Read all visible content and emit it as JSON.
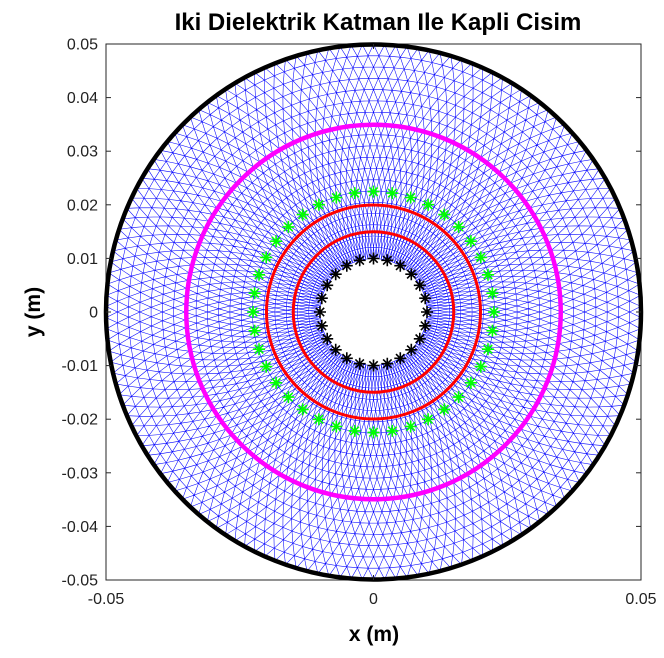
{
  "chart_data": {
    "type": "scatter",
    "title": "Iki Dielektrik Katman Ile Kapli Cisim",
    "xlabel": "x (m)",
    "ylabel": "y (m)",
    "xlim": [
      -0.05,
      0.05
    ],
    "ylim": [
      -0.05,
      0.05
    ],
    "xticks": [
      "-0.05",
      "0",
      "0.05"
    ],
    "yticks": [
      "0.05",
      "0.04",
      "0.03",
      "0.02",
      "0.01",
      "0",
      "-0.01",
      "-0.02",
      "-0.03",
      "-0.04",
      "-0.05"
    ],
    "grid": false,
    "mesh": {
      "color": "#0000ff",
      "inner_radius": 0.01,
      "outer_radius": 0.05
    },
    "circles": [
      {
        "name": "outer-boundary",
        "radius": 0.05,
        "color": "#000000",
        "style": "thick-line"
      },
      {
        "name": "magenta-layer",
        "radius": 0.035,
        "color": "#ff00ff",
        "style": "thick-line"
      },
      {
        "name": "green-markers",
        "radius": 0.0225,
        "color": "#00ff00",
        "style": "asterisk-markers",
        "count": 40
      },
      {
        "name": "red-outer",
        "radius": 0.02,
        "color": "#ff0000",
        "style": "line"
      },
      {
        "name": "red-inner",
        "radius": 0.015,
        "color": "#ff0000",
        "style": "line"
      },
      {
        "name": "black-markers",
        "radius": 0.01,
        "color": "#000000",
        "style": "asterisk-markers",
        "count": 24
      }
    ]
  }
}
